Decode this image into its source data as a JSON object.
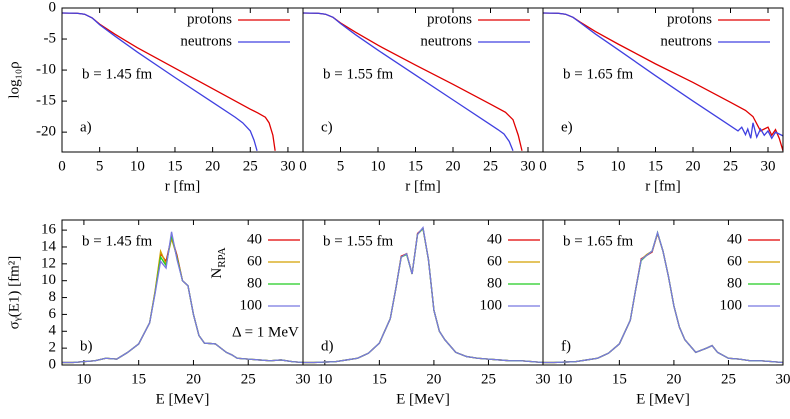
{
  "chart_data": [
    {
      "type": "line",
      "xlabel": "r [fm]",
      "ylabel": "log₁₀ρ",
      "xlim": [
        0,
        32
      ],
      "ylim": [
        -23.2,
        0
      ],
      "xticks": [
        0,
        5,
        10,
        15,
        20,
        25,
        30
      ],
      "yticks": [
        0,
        -5,
        -10,
        -15,
        -20
      ],
      "annotations": [
        "b = 1.45 fm",
        "a)"
      ],
      "series": [
        {
          "name": "protons",
          "color": "#e00000",
          "x": [
            0,
            2,
            3,
            4,
            5,
            7,
            10,
            15,
            20,
            25,
            26,
            27,
            27.5,
            28,
            28.3
          ],
          "values": [
            -0.8,
            -0.85,
            -1,
            -1.6,
            -2.6,
            -4.2,
            -6.4,
            -9.7,
            -13,
            -16.3,
            -16.9,
            -17.6,
            -18.5,
            -20.5,
            -23
          ]
        },
        {
          "name": "neutrons",
          "color": "#4040e0",
          "x": [
            0,
            2,
            3,
            4,
            5,
            7,
            10,
            15,
            20,
            23,
            24,
            25,
            25.5,
            25.9
          ],
          "values": [
            -0.8,
            -0.85,
            -1,
            -1.6,
            -2.7,
            -4.5,
            -7.1,
            -11.2,
            -15.2,
            -17.6,
            -18.5,
            -19.8,
            -21.3,
            -23
          ]
        }
      ]
    },
    {
      "type": "line",
      "xlabel": "r [fm]",
      "xlim": [
        0,
        32
      ],
      "ylim": [
        -23.2,
        0
      ],
      "xticks": [
        0,
        5,
        10,
        15,
        20,
        25,
        30
      ],
      "annotations": [
        "b = 1.55 fm",
        "c)"
      ],
      "series": [
        {
          "name": "protons",
          "color": "#e00000",
          "x": [
            0,
            2,
            3,
            4,
            5,
            7,
            10,
            15,
            20,
            25,
            27,
            28,
            28.7,
            29.2
          ],
          "values": [
            -0.8,
            -0.85,
            -1,
            -1.5,
            -2.4,
            -3.9,
            -6,
            -9.2,
            -12.3,
            -15.5,
            -16.8,
            -18,
            -20.5,
            -23
          ]
        },
        {
          "name": "neutrons",
          "color": "#4040e0",
          "x": [
            0,
            2,
            3,
            4,
            5,
            7,
            10,
            15,
            20,
            25,
            26,
            26.8,
            27.5,
            28
          ],
          "values": [
            -0.8,
            -0.85,
            -1,
            -1.5,
            -2.5,
            -4.3,
            -6.8,
            -10.8,
            -14.8,
            -18.8,
            -19.6,
            -20.3,
            -21.5,
            -23
          ]
        }
      ]
    },
    {
      "type": "line",
      "xlabel": "r [fm]",
      "xlim": [
        0,
        32
      ],
      "ylim": [
        -23.2,
        0
      ],
      "xticks": [
        0,
        5,
        10,
        15,
        20,
        25,
        30
      ],
      "annotations": [
        "b = 1.65 fm",
        "e)"
      ],
      "series": [
        {
          "name": "protons",
          "color": "#e00000",
          "x": [
            0,
            2,
            3,
            4,
            5,
            7,
            10,
            15,
            20,
            25,
            27,
            28,
            29,
            30,
            30.5,
            31,
            31.5,
            32
          ],
          "values": [
            -0.8,
            -0.85,
            -1,
            -1.5,
            -2.3,
            -3.8,
            -5.8,
            -9,
            -12,
            -15.2,
            -16.5,
            -17.5,
            -19.8,
            -19.2,
            -20.5,
            -19.6,
            -21,
            -23
          ]
        },
        {
          "name": "neutrons",
          "color": "#4040e0",
          "x": [
            0,
            2,
            3,
            4,
            5,
            7,
            10,
            15,
            20,
            24,
            26,
            26.5,
            27,
            27.3,
            27.7,
            28,
            28.5,
            29,
            29.5,
            30,
            30.5,
            31,
            32
          ],
          "values": [
            -0.8,
            -0.85,
            -1,
            -1.5,
            -2.4,
            -4.2,
            -6.7,
            -10.9,
            -15,
            -18.2,
            -19.8,
            -19.2,
            -20.4,
            -19.5,
            -21,
            -18.5,
            -20.8,
            -19.5,
            -20.5,
            -19.8,
            -21,
            -20,
            -20.6
          ]
        }
      ]
    },
    {
      "type": "line",
      "xlabel": "E [MeV]",
      "ylabel": "σᵧ(E1) [fm²]",
      "xlim": [
        8,
        30
      ],
      "ylim": [
        0,
        17.2
      ],
      "xticks": [
        10,
        15,
        20,
        25,
        30
      ],
      "yticks": [
        0,
        2,
        4,
        6,
        8,
        10,
        12,
        14,
        16
      ],
      "annotations": [
        "b = 1.45 fm",
        "b)",
        "Δ = 1 MeV"
      ],
      "legend_title": [
        "N",
        "RPA"
      ],
      "x": [
        8,
        9,
        10,
        11,
        12,
        13,
        14,
        15,
        16,
        16.5,
        17,
        17.5,
        18,
        18.5,
        19,
        19.5,
        20,
        20.5,
        21,
        22,
        23,
        23.5,
        24,
        25,
        26,
        27,
        28,
        29,
        30
      ],
      "series": [
        {
          "name": "40",
          "color": "#e00000",
          "values": [
            0.3,
            0.3,
            0.4,
            0.5,
            0.8,
            0.7,
            1.5,
            2.5,
            5,
            8.7,
            13.2,
            12.3,
            15.2,
            13,
            10,
            9.4,
            6,
            3.5,
            2.6,
            2.5,
            1.5,
            1.2,
            0.8,
            0.7,
            0.6,
            0.5,
            0.6,
            0.4,
            0.3
          ]
        },
        {
          "name": "60",
          "color": "#d4a000",
          "values": [
            0.3,
            0.3,
            0.4,
            0.5,
            0.8,
            0.7,
            1.5,
            2.5,
            5,
            8.8,
            13.5,
            12,
            15,
            12.8,
            10,
            9.4,
            6,
            3.5,
            2.6,
            2.5,
            1.5,
            1.2,
            0.8,
            0.7,
            0.6,
            0.5,
            0.6,
            0.4,
            0.3
          ]
        },
        {
          "name": "80",
          "color": "#22cc22",
          "values": [
            0.3,
            0.3,
            0.4,
            0.5,
            0.8,
            0.7,
            1.5,
            2.5,
            5,
            8.6,
            12.8,
            11.8,
            15.4,
            12.7,
            10,
            9.4,
            6,
            3.5,
            2.6,
            2.5,
            1.5,
            1.2,
            0.8,
            0.7,
            0.6,
            0.5,
            0.6,
            0.4,
            0.3
          ]
        },
        {
          "name": "100",
          "color": "#7878e0",
          "values": [
            0.3,
            0.3,
            0.4,
            0.5,
            0.8,
            0.7,
            1.5,
            2.5,
            5,
            8.5,
            12.3,
            11.5,
            15.8,
            12.5,
            10,
            9.4,
            6,
            3.5,
            2.6,
            2.5,
            1.5,
            1.2,
            0.8,
            0.7,
            0.6,
            0.5,
            0.6,
            0.4,
            0.3
          ]
        }
      ]
    },
    {
      "type": "line",
      "xlabel": "E [MeV]",
      "xlim": [
        8,
        30
      ],
      "ylim": [
        0,
        17.2
      ],
      "xticks": [
        10,
        15,
        20,
        25,
        30
      ],
      "annotations": [
        "b = 1.55 fm",
        "d)"
      ],
      "x": [
        8,
        9,
        10,
        11,
        12,
        13,
        14,
        15,
        16,
        16.5,
        17,
        17.5,
        18,
        18.5,
        19,
        19.5,
        20,
        20.5,
        21,
        22,
        23,
        23.5,
        24,
        25,
        26,
        27,
        28,
        29,
        30
      ],
      "series": [
        {
          "name": "40",
          "color": "#e00000",
          "values": [
            0.3,
            0.3,
            0.35,
            0.4,
            0.6,
            0.8,
            1.4,
            2.6,
            5.5,
            9,
            12.9,
            13.2,
            10.8,
            15.6,
            16.2,
            12.5,
            6.5,
            4,
            3,
            1.5,
            1,
            0.9,
            0.8,
            0.7,
            0.6,
            0.5,
            0.5,
            0.4,
            0.3
          ]
        },
        {
          "name": "60",
          "color": "#d4a000",
          "values": [
            0.3,
            0.3,
            0.35,
            0.4,
            0.6,
            0.8,
            1.4,
            2.6,
            5.5,
            9,
            12.8,
            13.2,
            10.8,
            15.5,
            16.2,
            12.5,
            6.5,
            4,
            3,
            1.5,
            1,
            0.9,
            0.8,
            0.7,
            0.6,
            0.5,
            0.5,
            0.4,
            0.3
          ]
        },
        {
          "name": "80",
          "color": "#22cc22",
          "values": [
            0.3,
            0.3,
            0.35,
            0.4,
            0.6,
            0.8,
            1.4,
            2.6,
            5.5,
            9,
            12.8,
            13.1,
            10.8,
            15.5,
            16.2,
            12.5,
            6.5,
            4,
            3,
            1.5,
            1,
            0.9,
            0.8,
            0.7,
            0.6,
            0.5,
            0.5,
            0.4,
            0.3
          ]
        },
        {
          "name": "100",
          "color": "#7878e0",
          "values": [
            0.3,
            0.3,
            0.35,
            0.4,
            0.6,
            0.8,
            1.4,
            2.6,
            5.5,
            9,
            12.8,
            13.2,
            10.8,
            15.5,
            16.3,
            12.5,
            6.5,
            4,
            3,
            1.5,
            1,
            0.9,
            0.8,
            0.7,
            0.6,
            0.5,
            0.5,
            0.4,
            0.3
          ]
        }
      ]
    },
    {
      "type": "line",
      "xlabel": "E [MeV]",
      "xlim": [
        8,
        30
      ],
      "ylim": [
        0,
        17.2
      ],
      "xticks": [
        10,
        15,
        20,
        25,
        30
      ],
      "annotations": [
        "b = 1.65 fm",
        "f)"
      ],
      "x": [
        8,
        9,
        10,
        11,
        12,
        13,
        14,
        15,
        16,
        16.5,
        17,
        17.5,
        18,
        18.5,
        19,
        19.5,
        20,
        20.5,
        21,
        22,
        23,
        23.5,
        24,
        25,
        26,
        27,
        28,
        29,
        30
      ],
      "series": [
        {
          "name": "40",
          "color": "#e00000",
          "values": [
            0.3,
            0.3,
            0.35,
            0.4,
            0.6,
            0.8,
            1.4,
            2.5,
            5.3,
            9,
            12.6,
            13,
            13.4,
            15.6,
            13.5,
            10.5,
            7,
            4.5,
            3,
            1.5,
            2,
            2.3,
            1.5,
            0.8,
            0.7,
            0.5,
            0.5,
            0.4,
            0.3
          ]
        },
        {
          "name": "60",
          "color": "#d4a000",
          "values": [
            0.3,
            0.3,
            0.35,
            0.4,
            0.6,
            0.8,
            1.4,
            2.5,
            5.3,
            9,
            12.5,
            13.1,
            13.5,
            15.6,
            13.5,
            10.5,
            7,
            4.5,
            3,
            1.5,
            2,
            2.3,
            1.5,
            0.8,
            0.7,
            0.5,
            0.5,
            0.4,
            0.3
          ]
        },
        {
          "name": "80",
          "color": "#22cc22",
          "values": [
            0.3,
            0.3,
            0.35,
            0.4,
            0.6,
            0.8,
            1.4,
            2.5,
            5.3,
            9,
            12.4,
            13,
            13.5,
            15.7,
            13.5,
            10.5,
            7,
            4.5,
            3,
            1.5,
            2,
            2.3,
            1.5,
            0.8,
            0.7,
            0.5,
            0.5,
            0.4,
            0.3
          ]
        },
        {
          "name": "100",
          "color": "#7878e0",
          "values": [
            0.3,
            0.3,
            0.35,
            0.4,
            0.6,
            0.8,
            1.4,
            2.5,
            5.3,
            9,
            12.5,
            13,
            13.5,
            15.7,
            13.5,
            10.5,
            7,
            4.5,
            3,
            1.5,
            2,
            2.3,
            1.5,
            0.8,
            0.7,
            0.5,
            0.5,
            0.4,
            0.3
          ]
        }
      ]
    }
  ]
}
